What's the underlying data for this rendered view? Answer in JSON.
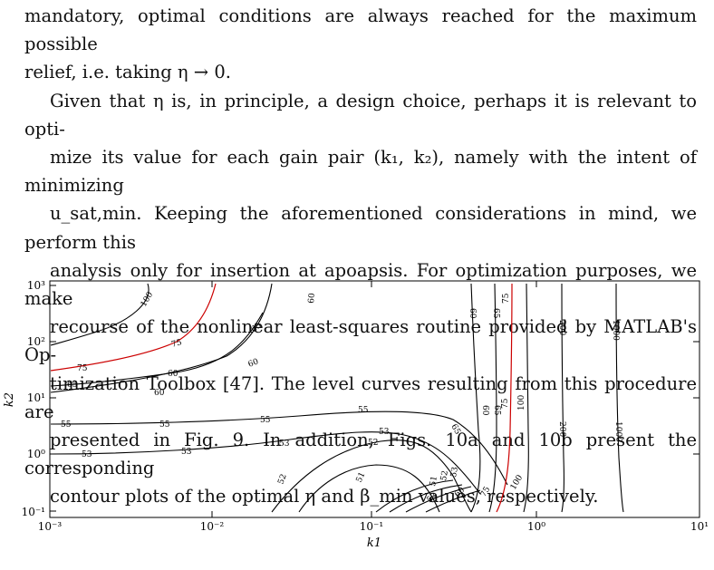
{
  "paragraph1": {
    "line1": "mandatory, optimal conditions are always reached for the maximum possible",
    "line2": "relief, i.e. taking η → 0."
  },
  "paragraph2": {
    "line1": "Given that η is, in principle, a design choice, perhaps it is relevant to opti-",
    "line2": "mize its value for each gain pair (k₁, k₂), namely with the intent of minimizing",
    "line3": "u_sat,min. Keeping the aforementioned considerations in mind, we perform this",
    "line4": "analysis only for insertion at apoapsis. For optimization purposes, we make",
    "line5": "recourse of the nonlinear least-squares routine provided by MATLAB's Op-",
    "line6": "timization Toolbox [47]. The level curves resulting from this procedure are",
    "line7": "presented in Fig. 9. In addition, Figs. 10a and 10b present the corresponding",
    "line8": "contour plots of the optimal η and β_min values, respectively."
  },
  "chart_data": {
    "type": "contour",
    "xlabel": "k1",
    "ylabel": "k2",
    "xscale": "log",
    "yscale": "log",
    "xlim": [
      0.001,
      10
    ],
    "ylim": [
      0.1,
      1000
    ],
    "x_ticks": [
      "10⁻³",
      "10⁻²",
      "10⁻¹",
      "10⁰",
      "10¹"
    ],
    "y_ticks": [
      "10⁻¹",
      "10⁰",
      "10¹",
      "10²",
      "10³"
    ],
    "highlight_level": 75,
    "highlight_color": "#cc0000",
    "line_color": "#000000",
    "contour_labels": [
      "100",
      "60",
      "65",
      "75",
      "75",
      "65",
      "60",
      "60",
      "55",
      "55",
      "55",
      "55",
      "53",
      "53",
      "53",
      "53",
      "52",
      "52",
      "51",
      "51",
      "51",
      "52",
      "53",
      "53",
      "65",
      "60",
      "75",
      "100",
      "60",
      "65",
      "75",
      "100",
      "60",
      "65",
      "75",
      "100",
      "200",
      "200",
      "1000",
      "1000"
    ]
  }
}
